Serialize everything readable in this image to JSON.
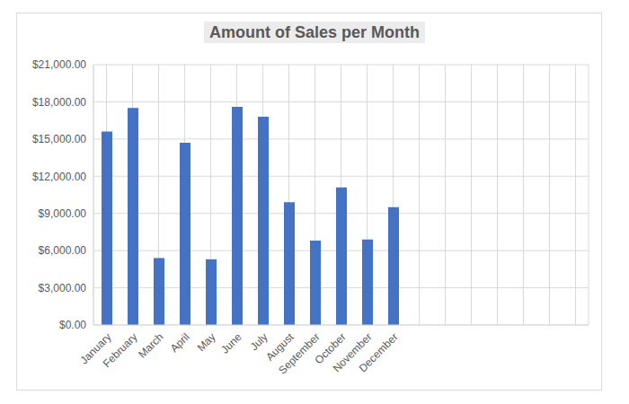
{
  "chart_data": {
    "type": "bar",
    "title": "Amount of Sales per Month",
    "categories": [
      "January",
      "February",
      "March",
      "April",
      "May",
      "June",
      "July",
      "August",
      "September",
      "October",
      "November",
      "December",
      null,
      null,
      null,
      null,
      null,
      null,
      null
    ],
    "values": [
      15600,
      17500,
      5400,
      14700,
      5300,
      17600,
      16800,
      9900,
      6800,
      11100,
      6900,
      9500,
      null,
      null,
      null,
      null,
      null,
      null,
      null
    ],
    "color": "#4472c4",
    "ylim": [
      0,
      21000
    ],
    "yticks": [
      {
        "value": 0,
        "label": "$0.00"
      },
      {
        "value": 3000,
        "label": "$3,000.00"
      },
      {
        "value": 6000,
        "label": "$6,000.00"
      },
      {
        "value": 9000,
        "label": "$9,000.00"
      },
      {
        "value": 12000,
        "label": "$12,000.00"
      },
      {
        "value": 15000,
        "label": "$15,000.00"
      },
      {
        "value": 18000,
        "label": "$18,000.00"
      },
      {
        "value": 21000,
        "label": "$21,000.00"
      }
    ],
    "grid": true
  }
}
